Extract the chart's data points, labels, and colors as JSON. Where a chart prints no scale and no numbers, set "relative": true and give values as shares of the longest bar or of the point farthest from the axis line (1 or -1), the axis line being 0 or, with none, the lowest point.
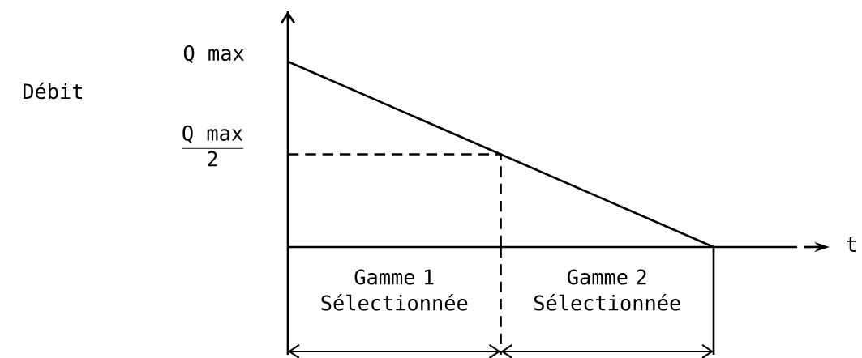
{
  "chart_data": {
    "type": "line",
    "xlabel": "t",
    "relative": true,
    "categories": [
      null,
      null,
      null
    ],
    "series": [
      {
        "color": "#000000",
        "values": [
          1,
          0.5,
          0
        ]
      },
      {
        "type": "step",
        "color": "#000000",
        "line_style": "dashed",
        "values": [
          0.5,
          0,
          null
        ]
      }
    ],
    "annotations": [
      "Débit",
      "Q max",
      "\\frac{\\text{Q max}}{\\text{2}}",
      "Gamme 1 Sélectionnée",
      "Gamme 2 Sélectionnée"
    ]
  }
}
